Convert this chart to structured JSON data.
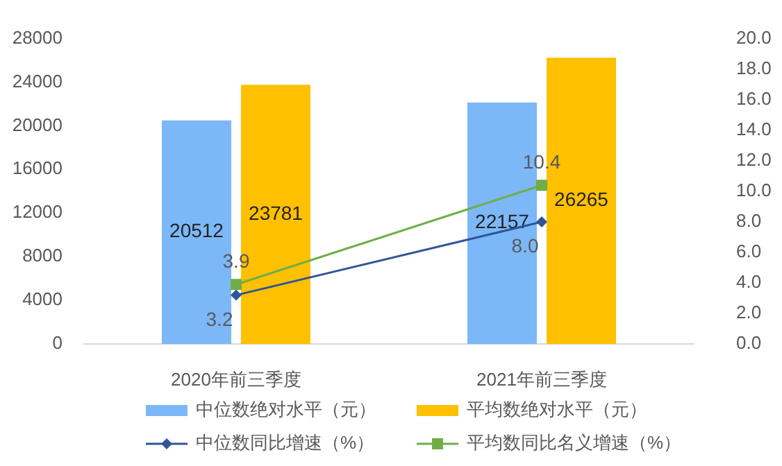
{
  "chart_data": {
    "type": "bar",
    "categories": [
      "2020年前三季度",
      "2021年前三季度"
    ],
    "series": [
      {
        "name": "中位数绝对水平（元）",
        "color": "#7cb8f8",
        "values": [
          20512,
          22157
        ]
      },
      {
        "name": "平均数绝对水平（元）",
        "color": "#ffc000",
        "values": [
          23781,
          26265
        ]
      },
      {
        "name": "中位数同比增速（%）",
        "type": "line",
        "axis": "y2",
        "marker": "diamond",
        "color": "#2f5597",
        "values": [
          3.2,
          8.0
        ],
        "value_labels": [
          "3.2",
          "8.0"
        ]
      },
      {
        "name": "平均数同比名义增速（%）",
        "type": "line",
        "axis": "y2",
        "marker": "square",
        "color": "#70ad47",
        "values": [
          3.9,
          10.4
        ],
        "value_labels": [
          "3.9",
          "10.4"
        ]
      }
    ],
    "ylim": [
      0,
      28000
    ],
    "yticks": [
      0,
      4000,
      8000,
      12000,
      16000,
      20000,
      24000,
      28000
    ],
    "y2lim": [
      0,
      20
    ],
    "y2ticks": [
      {
        "value": 0,
        "label": "0.0"
      },
      {
        "value": 2,
        "label": "2.0"
      },
      {
        "value": 4,
        "label": "4.0"
      },
      {
        "value": 6,
        "label": "6.0"
      },
      {
        "value": 8,
        "label": "8.0"
      },
      {
        "value": 10,
        "label": "10.0"
      },
      {
        "value": 12,
        "label": "12.0"
      },
      {
        "value": 14,
        "label": "14.0"
      },
      {
        "value": 16,
        "label": "16.0"
      },
      {
        "value": 18,
        "label": "18.0"
      },
      {
        "value": 20,
        "label": "20.0"
      }
    ],
    "data_labels": true,
    "legend": "bottom"
  }
}
